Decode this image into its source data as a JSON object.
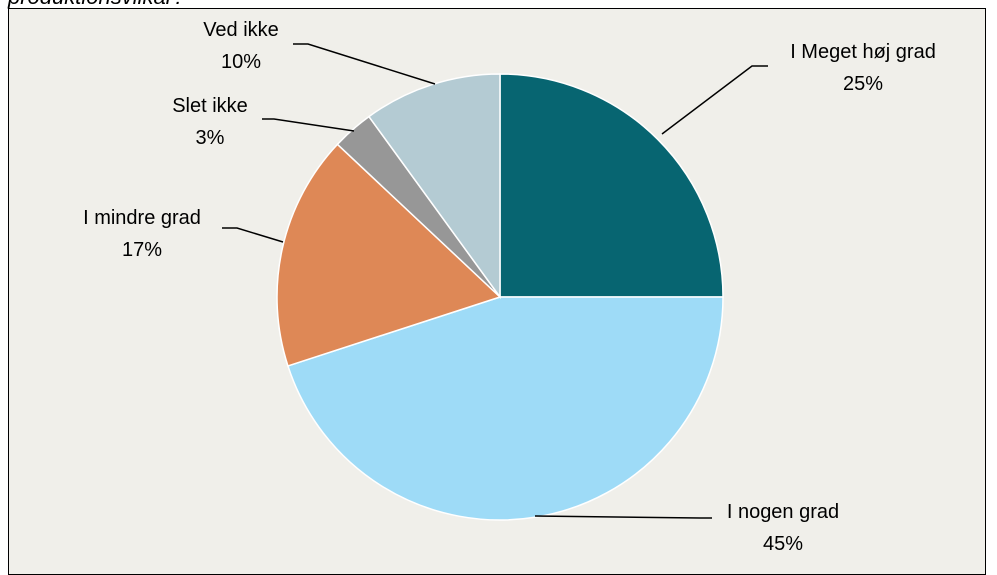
{
  "header": {
    "partial_title": "produktionsvilkår?"
  },
  "chart_data": {
    "type": "pie",
    "title": "",
    "slices": [
      {
        "label": "I Meget høj grad",
        "percent_label": "25%",
        "value": 25,
        "color": "#076571"
      },
      {
        "label": "I nogen grad",
        "percent_label": "45%",
        "value": 45,
        "color": "#9edbf7"
      },
      {
        "label": "I mindre grad",
        "percent_label": "17%",
        "value": 17,
        "color": "#de8856"
      },
      {
        "label": "Slet ikke",
        "percent_label": "3%",
        "value": 3,
        "color": "#979797"
      },
      {
        "label": "Ved ikke",
        "percent_label": "10%",
        "value": 10,
        "color": "#b4cbd3"
      }
    ],
    "start_angle": "12 o'clock",
    "direction": "clockwise",
    "legend": "none",
    "data_labels": "outside with leader lines"
  }
}
